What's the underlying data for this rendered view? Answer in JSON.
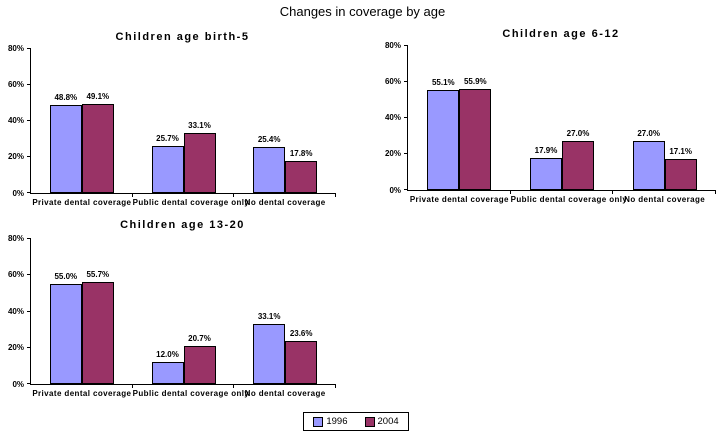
{
  "figure": {
    "title": "Changes in coverage by age"
  },
  "legend": {
    "items": [
      {
        "label": "1996",
        "color": "#9999ff"
      },
      {
        "label": "2004",
        "color": "#993366"
      }
    ]
  },
  "colors": {
    "series_1996": "#9999ff",
    "series_2004": "#993366",
    "axis": "#000000",
    "background": "#ffffff"
  },
  "chart_data": [
    {
      "type": "bar",
      "title": "Children age birth-5",
      "categories": [
        "Private dental coverage",
        "Public dental coverage only",
        "No dental coverage"
      ],
      "series": [
        {
          "name": "1996",
          "color": "#9999ff",
          "values": [
            48.8,
            25.7,
            25.4
          ],
          "labels": [
            "48.8%",
            "25.7%",
            "25.4%"
          ]
        },
        {
          "name": "2004",
          "color": "#993366",
          "values": [
            49.1,
            33.1,
            17.8
          ],
          "labels": [
            "49.1%",
            "33.1%",
            "17.8%"
          ]
        }
      ],
      "xlabel": "",
      "ylabel": "",
      "ylim": [
        0,
        80
      ],
      "yticks": [
        "0%",
        "20%",
        "40%",
        "60%",
        "80%"
      ],
      "grid": false,
      "legend_position": "shared-bottom"
    },
    {
      "type": "bar",
      "title": "Children age 6-12",
      "categories": [
        "Private dental coverage",
        "Public dental coverage only",
        "No dental coverage"
      ],
      "series": [
        {
          "name": "1996",
          "color": "#9999ff",
          "values": [
            55.1,
            17.9,
            27.0
          ],
          "labels": [
            "55.1%",
            "17.9%",
            "27.0%"
          ]
        },
        {
          "name": "2004",
          "color": "#993366",
          "values": [
            55.9,
            27.0,
            17.1
          ],
          "labels": [
            "55.9%",
            "27.0%",
            "17.1%"
          ]
        }
      ],
      "xlabel": "",
      "ylabel": "",
      "ylim": [
        0,
        80
      ],
      "yticks": [
        "0%",
        "20%",
        "40%",
        "60%",
        "80%"
      ],
      "grid": false,
      "legend_position": "shared-bottom"
    },
    {
      "type": "bar",
      "title": "Children age 13-20",
      "categories": [
        "Private dental coverage",
        "Public dental coverage only",
        "No dental coverage"
      ],
      "series": [
        {
          "name": "1996",
          "color": "#9999ff",
          "values": [
            55.0,
            12.0,
            33.1
          ],
          "labels": [
            "55.0%",
            "12.0%",
            "33.1%"
          ]
        },
        {
          "name": "2004",
          "color": "#993366",
          "values": [
            55.7,
            20.7,
            23.6
          ],
          "labels": [
            "55.7%",
            "20.7%",
            "23.6%"
          ]
        }
      ],
      "xlabel": "",
      "ylabel": "",
      "ylim": [
        0,
        80
      ],
      "yticks": [
        "0%",
        "20%",
        "40%",
        "60%",
        "80%"
      ],
      "grid": false,
      "legend_position": "shared-bottom"
    }
  ]
}
